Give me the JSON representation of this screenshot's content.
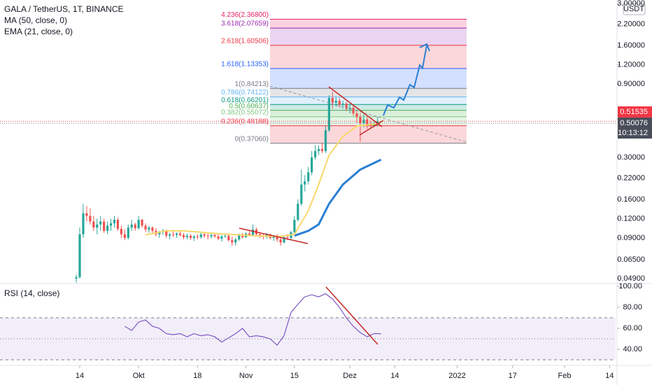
{
  "chart_data": [
    {
      "type": "candlestick",
      "title": "GALA / TetherUS, 1T, BINANCE",
      "log_scale": true,
      "up_color": "#26a69a",
      "down_color": "#ef5350",
      "x": [
        -1,
        0,
        1,
        2,
        3,
        4,
        5,
        6,
        7,
        8,
        9,
        10,
        11,
        12,
        13,
        14,
        15,
        16,
        17,
        18,
        19,
        20,
        21,
        22,
        23,
        24,
        25,
        26,
        27,
        28,
        29,
        30,
        31,
        32,
        33,
        34,
        35,
        36,
        37,
        38,
        39,
        40,
        41,
        42,
        43,
        44,
        45,
        46,
        47,
        48,
        49,
        50,
        51,
        52,
        53,
        54,
        55,
        56,
        57,
        58,
        59,
        60,
        61,
        62,
        63,
        64,
        65,
        66,
        67,
        68,
        69,
        70,
        71,
        72,
        73,
        74,
        75,
        76,
        77,
        78,
        79,
        80,
        81,
        82,
        83,
        84,
        85,
        86
      ],
      "ohlc": [
        [
          0.049,
          0.052,
          0.046,
          0.05
        ],
        [
          0.05,
          0.105,
          0.049,
          0.095
        ],
        [
          0.095,
          0.15,
          0.09,
          0.13
        ],
        [
          0.13,
          0.145,
          0.115,
          0.125
        ],
        [
          0.125,
          0.14,
          0.11,
          0.115
        ],
        [
          0.115,
          0.125,
          0.1,
          0.105
        ],
        [
          0.105,
          0.12,
          0.095,
          0.11
        ],
        [
          0.11,
          0.125,
          0.1,
          0.115
        ],
        [
          0.115,
          0.12,
          0.097,
          0.1
        ],
        [
          0.1,
          0.115,
          0.095,
          0.108
        ],
        [
          0.108,
          0.12,
          0.1,
          0.112
        ],
        [
          0.112,
          0.125,
          0.105,
          0.118
        ],
        [
          0.118,
          0.122,
          0.1,
          0.103
        ],
        [
          0.103,
          0.108,
          0.09,
          0.095
        ],
        [
          0.095,
          0.102,
          0.087,
          0.09
        ],
        [
          0.09,
          0.11,
          0.088,
          0.105
        ],
        [
          0.105,
          0.118,
          0.1,
          0.11
        ],
        [
          0.11,
          0.113,
          0.1,
          0.104
        ],
        [
          0.104,
          0.125,
          0.102,
          0.118
        ],
        [
          0.118,
          0.12,
          0.105,
          0.108
        ],
        [
          0.108,
          0.112,
          0.098,
          0.102
        ],
        [
          0.102,
          0.108,
          0.097,
          0.105
        ],
        [
          0.105,
          0.107,
          0.096,
          0.1
        ],
        [
          0.1,
          0.104,
          0.092,
          0.095
        ],
        [
          0.095,
          0.1,
          0.09,
          0.098
        ],
        [
          0.098,
          0.103,
          0.094,
          0.1
        ],
        [
          0.1,
          0.102,
          0.09,
          0.093
        ],
        [
          0.093,
          0.097,
          0.088,
          0.095
        ],
        [
          0.095,
          0.1,
          0.091,
          0.094
        ],
        [
          0.094,
          0.098,
          0.09,
          0.096
        ],
        [
          0.096,
          0.1,
          0.092,
          0.094
        ],
        [
          0.094,
          0.097,
          0.088,
          0.091
        ],
        [
          0.091,
          0.096,
          0.088,
          0.093
        ],
        [
          0.093,
          0.095,
          0.087,
          0.09
        ],
        [
          0.09,
          0.094,
          0.086,
          0.092
        ],
        [
          0.092,
          0.095,
          0.088,
          0.091
        ],
        [
          0.091,
          0.097,
          0.089,
          0.095
        ],
        [
          0.095,
          0.098,
          0.09,
          0.093
        ],
        [
          0.093,
          0.096,
          0.088,
          0.092
        ],
        [
          0.092,
          0.096,
          0.089,
          0.094
        ],
        [
          0.094,
          0.097,
          0.09,
          0.092
        ],
        [
          0.092,
          0.095,
          0.087,
          0.089
        ],
        [
          0.089,
          0.094,
          0.085,
          0.092
        ],
        [
          0.092,
          0.096,
          0.09,
          0.093
        ],
        [
          0.093,
          0.094,
          0.085,
          0.087
        ],
        [
          0.087,
          0.092,
          0.08,
          0.084
        ],
        [
          0.084,
          0.09,
          0.08,
          0.088
        ],
        [
          0.088,
          0.096,
          0.086,
          0.094
        ],
        [
          0.094,
          0.097,
          0.089,
          0.091
        ],
        [
          0.091,
          0.098,
          0.09,
          0.096
        ],
        [
          0.096,
          0.1,
          0.092,
          0.094
        ],
        [
          0.094,
          0.11,
          0.092,
          0.102
        ],
        [
          0.102,
          0.105,
          0.092,
          0.095
        ],
        [
          0.095,
          0.098,
          0.09,
          0.093
        ],
        [
          0.093,
          0.096,
          0.088,
          0.092
        ],
        [
          0.092,
          0.097,
          0.089,
          0.095
        ],
        [
          0.095,
          0.096,
          0.088,
          0.09
        ],
        [
          0.09,
          0.094,
          0.086,
          0.092
        ],
        [
          0.092,
          0.095,
          0.085,
          0.088
        ],
        [
          0.088,
          0.092,
          0.08,
          0.084
        ],
        [
          0.084,
          0.093,
          0.083,
          0.091
        ],
        [
          0.091,
          0.095,
          0.087,
          0.09
        ],
        [
          0.09,
          0.1,
          0.088,
          0.098
        ],
        [
          0.098,
          0.125,
          0.096,
          0.118
        ],
        [
          0.118,
          0.16,
          0.115,
          0.15
        ],
        [
          0.15,
          0.25,
          0.145,
          0.2
        ],
        [
          0.2,
          0.23,
          0.18,
          0.21
        ],
        [
          0.21,
          0.26,
          0.2,
          0.24
        ],
        [
          0.24,
          0.33,
          0.23,
          0.3
        ],
        [
          0.3,
          0.36,
          0.29,
          0.33
        ],
        [
          0.33,
          0.36,
          0.31,
          0.34
        ],
        [
          0.34,
          0.37,
          0.32,
          0.33
        ],
        [
          0.33,
          0.48,
          0.32,
          0.45
        ],
        [
          0.45,
          0.76,
          0.44,
          0.73
        ],
        [
          0.73,
          0.8,
          0.62,
          0.68
        ],
        [
          0.68,
          0.74,
          0.64,
          0.7
        ],
        [
          0.7,
          0.73,
          0.63,
          0.66
        ],
        [
          0.66,
          0.7,
          0.62,
          0.67
        ],
        [
          0.67,
          0.69,
          0.6,
          0.62
        ],
        [
          0.62,
          0.66,
          0.58,
          0.63
        ],
        [
          0.63,
          0.65,
          0.56,
          0.58
        ],
        [
          0.58,
          0.6,
          0.5,
          0.55
        ],
        [
          0.55,
          0.58,
          0.38,
          0.5
        ],
        [
          0.5,
          0.57,
          0.47,
          0.53
        ],
        [
          0.53,
          0.55,
          0.46,
          0.49
        ],
        [
          0.49,
          0.52,
          0.46,
          0.48
        ],
        [
          0.48,
          0.52,
          0.47,
          0.5
        ],
        [
          0.5,
          0.55,
          0.48,
          0.515
        ]
      ],
      "series": [
        {
          "name": "MA (50, close, 0)",
          "color": "#2a7fd4",
          "x": [
            62,
            66,
            69,
            72,
            76,
            81,
            87
          ],
          "values": [
            0.093,
            0.1,
            0.11,
            0.15,
            0.2,
            0.25,
            0.29
          ]
        },
        {
          "name": "EMA (21, close, 0)",
          "color": "#f7d86a",
          "x": [
            19,
            25,
            30,
            40,
            50,
            58,
            62,
            66,
            69,
            72,
            76,
            80,
            84,
            87
          ],
          "values": [
            0.094,
            0.1,
            0.1,
            0.096,
            0.093,
            0.092,
            0.095,
            0.135,
            0.2,
            0.31,
            0.41,
            0.48,
            0.49,
            0.5
          ]
        }
      ],
      "fib_levels": [
        0.3706,
        0.48188,
        0.55072,
        0.60637,
        0.66201,
        0.74122,
        0.84213,
        1.13353,
        1.60506,
        2.07659,
        2.368
      ],
      "fib_labels": [
        "0(0.37060)",
        "0.236(0.48188)",
        "0.382(0.55072)",
        "0.5(0.60637)",
        "0.618(0.66201)",
        "0.786(0.74122)",
        "1(0.84213)",
        "1.618(1.13353)",
        "2.618(1.60506)",
        "3.618(2.07659)",
        "4.236(2.36800)"
      ],
      "fib_colors": [
        "#787b86",
        "#f23645",
        "#81c784",
        "#4caf50",
        "#089981",
        "#64b5f6",
        "#787b86",
        "#2962ff",
        "#f23645",
        "#9c27b0",
        "#e91e63"
      ],
      "last_price": 0.51535,
      "mark_price": 0.50076,
      "countdown": "10:13:12",
      "currency": "USDT",
      "ylim": [
        0.0455,
        3.16
      ],
      "yticks": [
        {
          "value": 3,
          "label": "3.00000"
        },
        {
          "value": 2.2,
          "label": "2.20000"
        },
        {
          "value": 1.6,
          "label": "1.60000"
        },
        {
          "value": 1.2,
          "label": "1.20000"
        },
        {
          "value": 0.9,
          "label": "0.90000"
        },
        {
          "value": 0.3,
          "label": "0.30000"
        },
        {
          "value": 0.22,
          "label": "0.22000"
        },
        {
          "value": 0.16,
          "label": "0.16000"
        },
        {
          "value": 0.12,
          "label": "0.12000"
        },
        {
          "value": 0.09,
          "label": "0.09000"
        },
        {
          "value": 0.065,
          "label": "0.06500"
        },
        {
          "value": 0.049,
          "label": "0.04900"
        }
      ],
      "xlim": [
        -23.03,
        154.75
      ],
      "xticks": [
        {
          "value": 0,
          "label": "14"
        },
        {
          "value": 17,
          "label": "Okt"
        },
        {
          "value": 34,
          "label": "18"
        },
        {
          "value": 48,
          "label": "Nov"
        },
        {
          "value": 62,
          "label": "15"
        },
        {
          "value": 78,
          "label": "Dez"
        },
        {
          "value": 91,
          "label": "14"
        },
        {
          "value": 109,
          "label": "2022"
        },
        {
          "value": 125,
          "label": "17"
        },
        {
          "value": 140,
          "label": "Feb"
        },
        {
          "value": 153,
          "label": "14"
        }
      ]
    },
    {
      "type": "line",
      "title": "RSI (14, close)",
      "color": "#7e57c2",
      "x": [
        13,
        15,
        17,
        19,
        21,
        23,
        25,
        27,
        29,
        31,
        33,
        35,
        37,
        39,
        41,
        43,
        45,
        47,
        49,
        51,
        53,
        55,
        57,
        59,
        61,
        63,
        65,
        67,
        69,
        71,
        73,
        75,
        77,
        79,
        81,
        83,
        85,
        87
      ],
      "values": [
        62,
        58,
        66,
        68,
        62,
        60,
        55,
        54,
        55,
        52,
        55,
        53,
        54,
        52,
        47,
        51,
        55,
        60,
        52,
        53,
        52,
        50,
        44,
        53,
        75,
        83,
        90,
        92,
        90,
        93,
        88,
        80,
        70,
        62,
        56,
        52,
        55,
        55
      ],
      "levels": [
        70,
        50,
        30
      ],
      "ylim": [
        24.7,
        102.7
      ],
      "yticks": [
        {
          "value": 100,
          "label": "100.00"
        },
        {
          "value": 80,
          "label": "80.00"
        },
        {
          "value": 60,
          "label": "60.00"
        },
        {
          "value": 40,
          "label": "40.00"
        }
      ]
    }
  ]
}
